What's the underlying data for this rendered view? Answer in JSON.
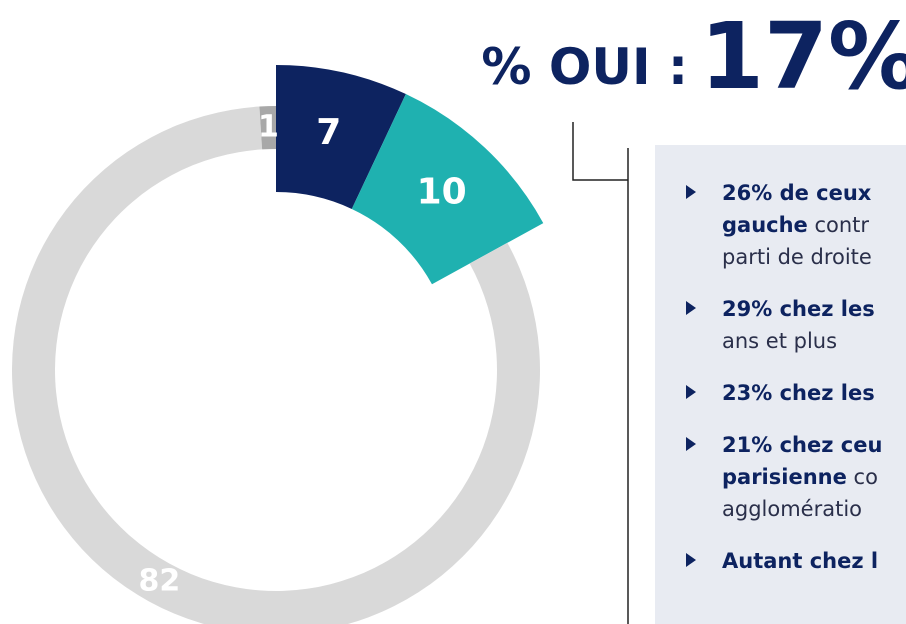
{
  "chart_data": {
    "type": "donut",
    "values": [
      7,
      10,
      82,
      1
    ],
    "colors": [
      "#0d2360",
      "#1fb1b0",
      "#d9d9d9",
      "#a8a8a8"
    ],
    "exploded": [
      true,
      true,
      false,
      false
    ]
  },
  "title": {
    "prefix": "% OUI :",
    "value": "17%"
  },
  "panel": {
    "items": [
      {
        "lines": [
          [
            {
              "text": "26% de ceux",
              "bold": true
            }
          ],
          [
            {
              "text": "gauche",
              "bold": true
            },
            {
              "text": " contr",
              "bold": false
            }
          ],
          [
            {
              "text": "parti de droite",
              "bold": false
            }
          ]
        ]
      },
      {
        "lines": [
          [
            {
              "text": "29% chez les",
              "bold": true
            }
          ],
          [
            {
              "text": "ans et plus",
              "bold": false
            }
          ]
        ]
      },
      {
        "lines": [
          [
            {
              "text": "23% chez les",
              "bold": true
            }
          ]
        ]
      },
      {
        "lines": [
          [
            {
              "text": "21% chez ceu",
              "bold": true
            }
          ],
          [
            {
              "text": "parisienne",
              "bold": true
            },
            {
              "text": " co",
              "bold": false
            }
          ],
          [
            {
              "text": "agglomératio",
              "bold": false
            }
          ]
        ]
      },
      {
        "lines": [
          [
            {
              "text": "Autant chez l",
              "bold": true
            }
          ]
        ]
      }
    ]
  }
}
